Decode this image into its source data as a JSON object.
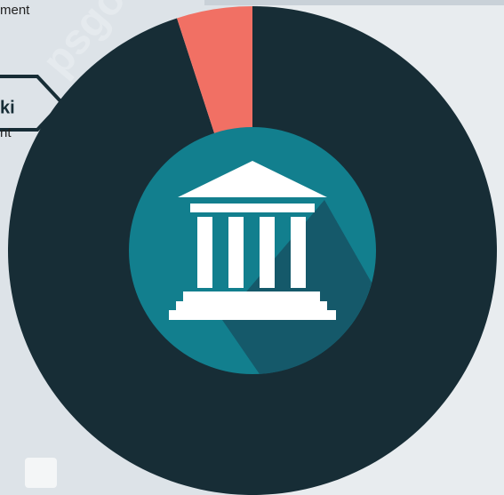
{
  "texts": {
    "top_label": "ment",
    "heading": "ki",
    "sub_label": "nt",
    "watermark": "psgo.id"
  },
  "chart_data": {
    "type": "pie",
    "categories": [
      null,
      null
    ],
    "values": [
      95,
      5
    ],
    "colors": [
      "#172d36",
      "#f17064"
    ]
  }
}
